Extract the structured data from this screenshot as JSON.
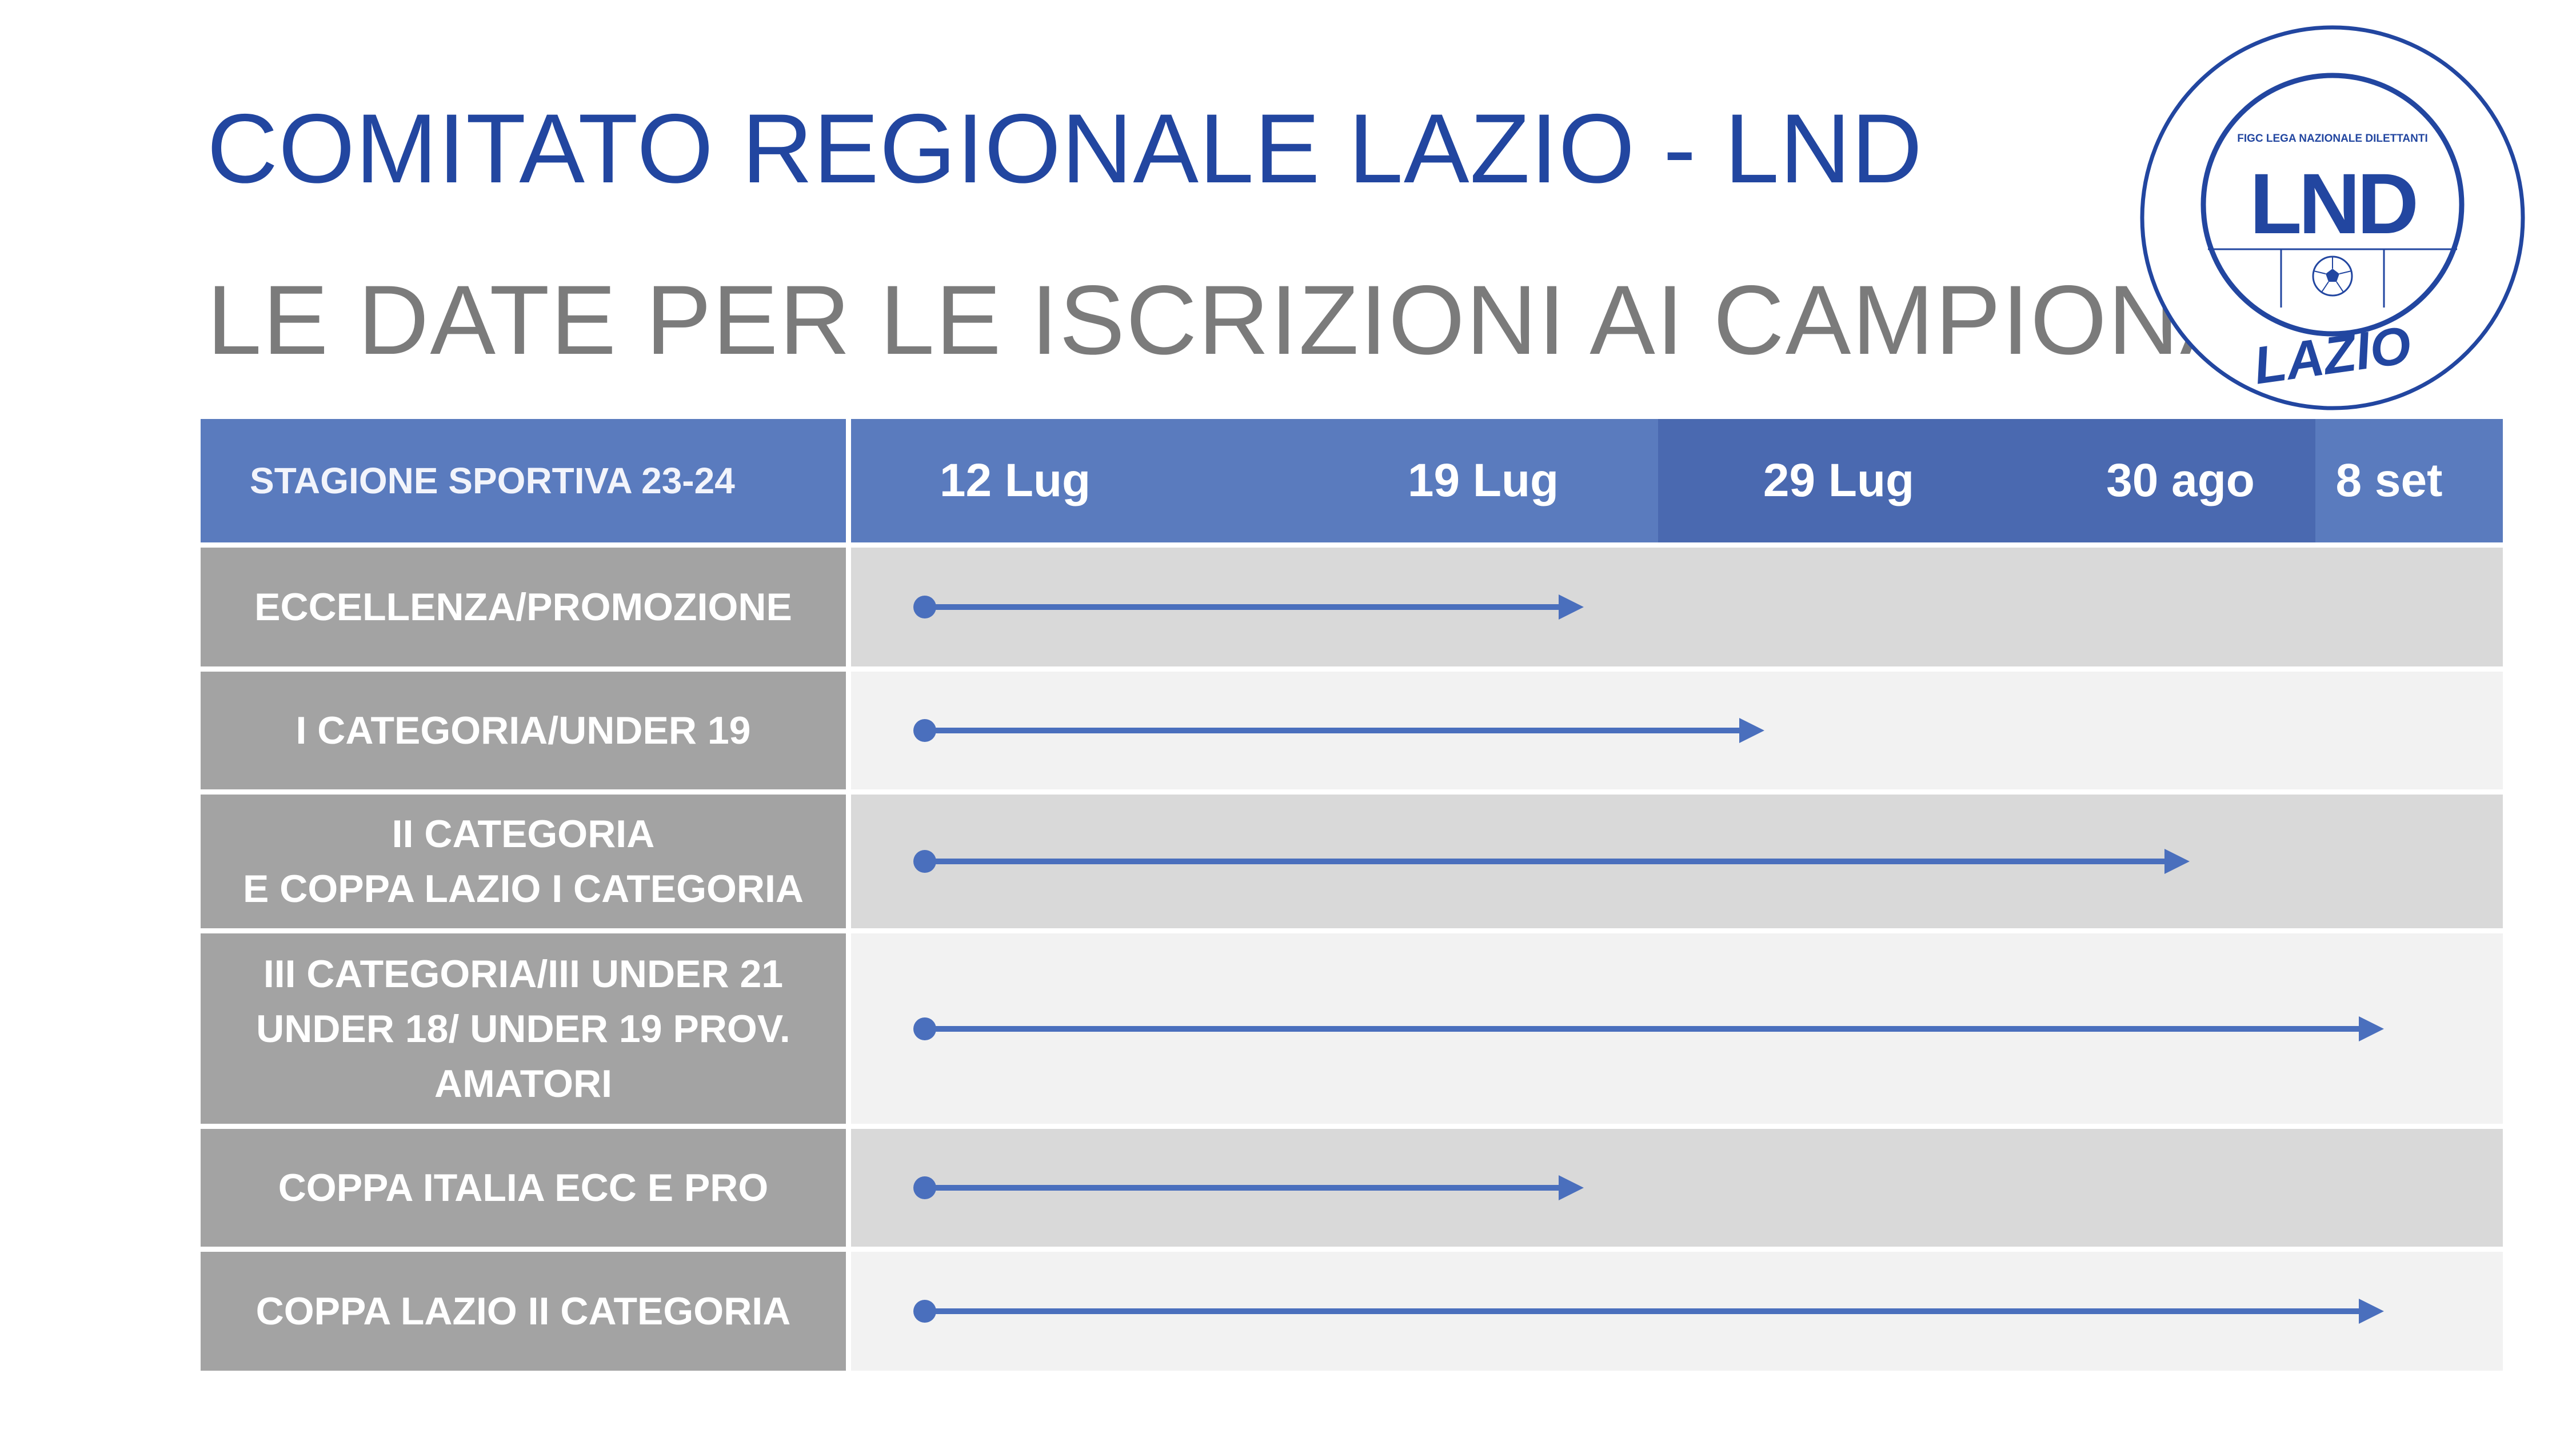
{
  "title": "COMITATO REGIONALE LAZIO - LND",
  "subtitle": "LE DATE PER LE ISCRIZIONI AI CAMPIONATI",
  "logo": {
    "top_text": "FIGC LEGA NAZIONALE DILETTANTI",
    "mark": "LND",
    "region": "LAZIO",
    "colors": {
      "ring": "#2246a0",
      "background": "#ffffff"
    }
  },
  "colors": {
    "header_blue": "#5a7bbe",
    "header_blue_dark": "#4a69b0",
    "label_gray": "#a3a3a3",
    "row_dark": "#d9d9d9",
    "row_light": "#f2f2f2",
    "arrow": "#4a6fbd"
  },
  "chart_data": {
    "type": "table",
    "header_label": "STAGIONE SPORTIVA 23-24",
    "dates": [
      "12 Lug",
      "19 Lug",
      "29 Lug",
      "30 ago",
      "8 set"
    ],
    "rows": [
      {
        "label": "ECCELLENZA/PROMOZIONE",
        "start": "12 Lug",
        "end": "19 Lug"
      },
      {
        "label": "I CATEGORIA/UNDER 19",
        "start": "12 Lug",
        "end": "29 Lug"
      },
      {
        "label": "II CATEGORIA\nE COPPA LAZIO I CATEGORIA",
        "start": "12 Lug",
        "end": "30 ago"
      },
      {
        "label": "III CATEGORIA/III UNDER 21\nUNDER 18/ UNDER 19 PROV.\nAMATORI",
        "start": "12 Lug",
        "end": "8 set"
      },
      {
        "label": "COPPA ITALIA ECC E PRO",
        "start": "12 Lug",
        "end": "19 Lug"
      },
      {
        "label": "COPPA LAZIO II CATEGORIA",
        "start": "12 Lug",
        "end": "8 set"
      }
    ]
  }
}
